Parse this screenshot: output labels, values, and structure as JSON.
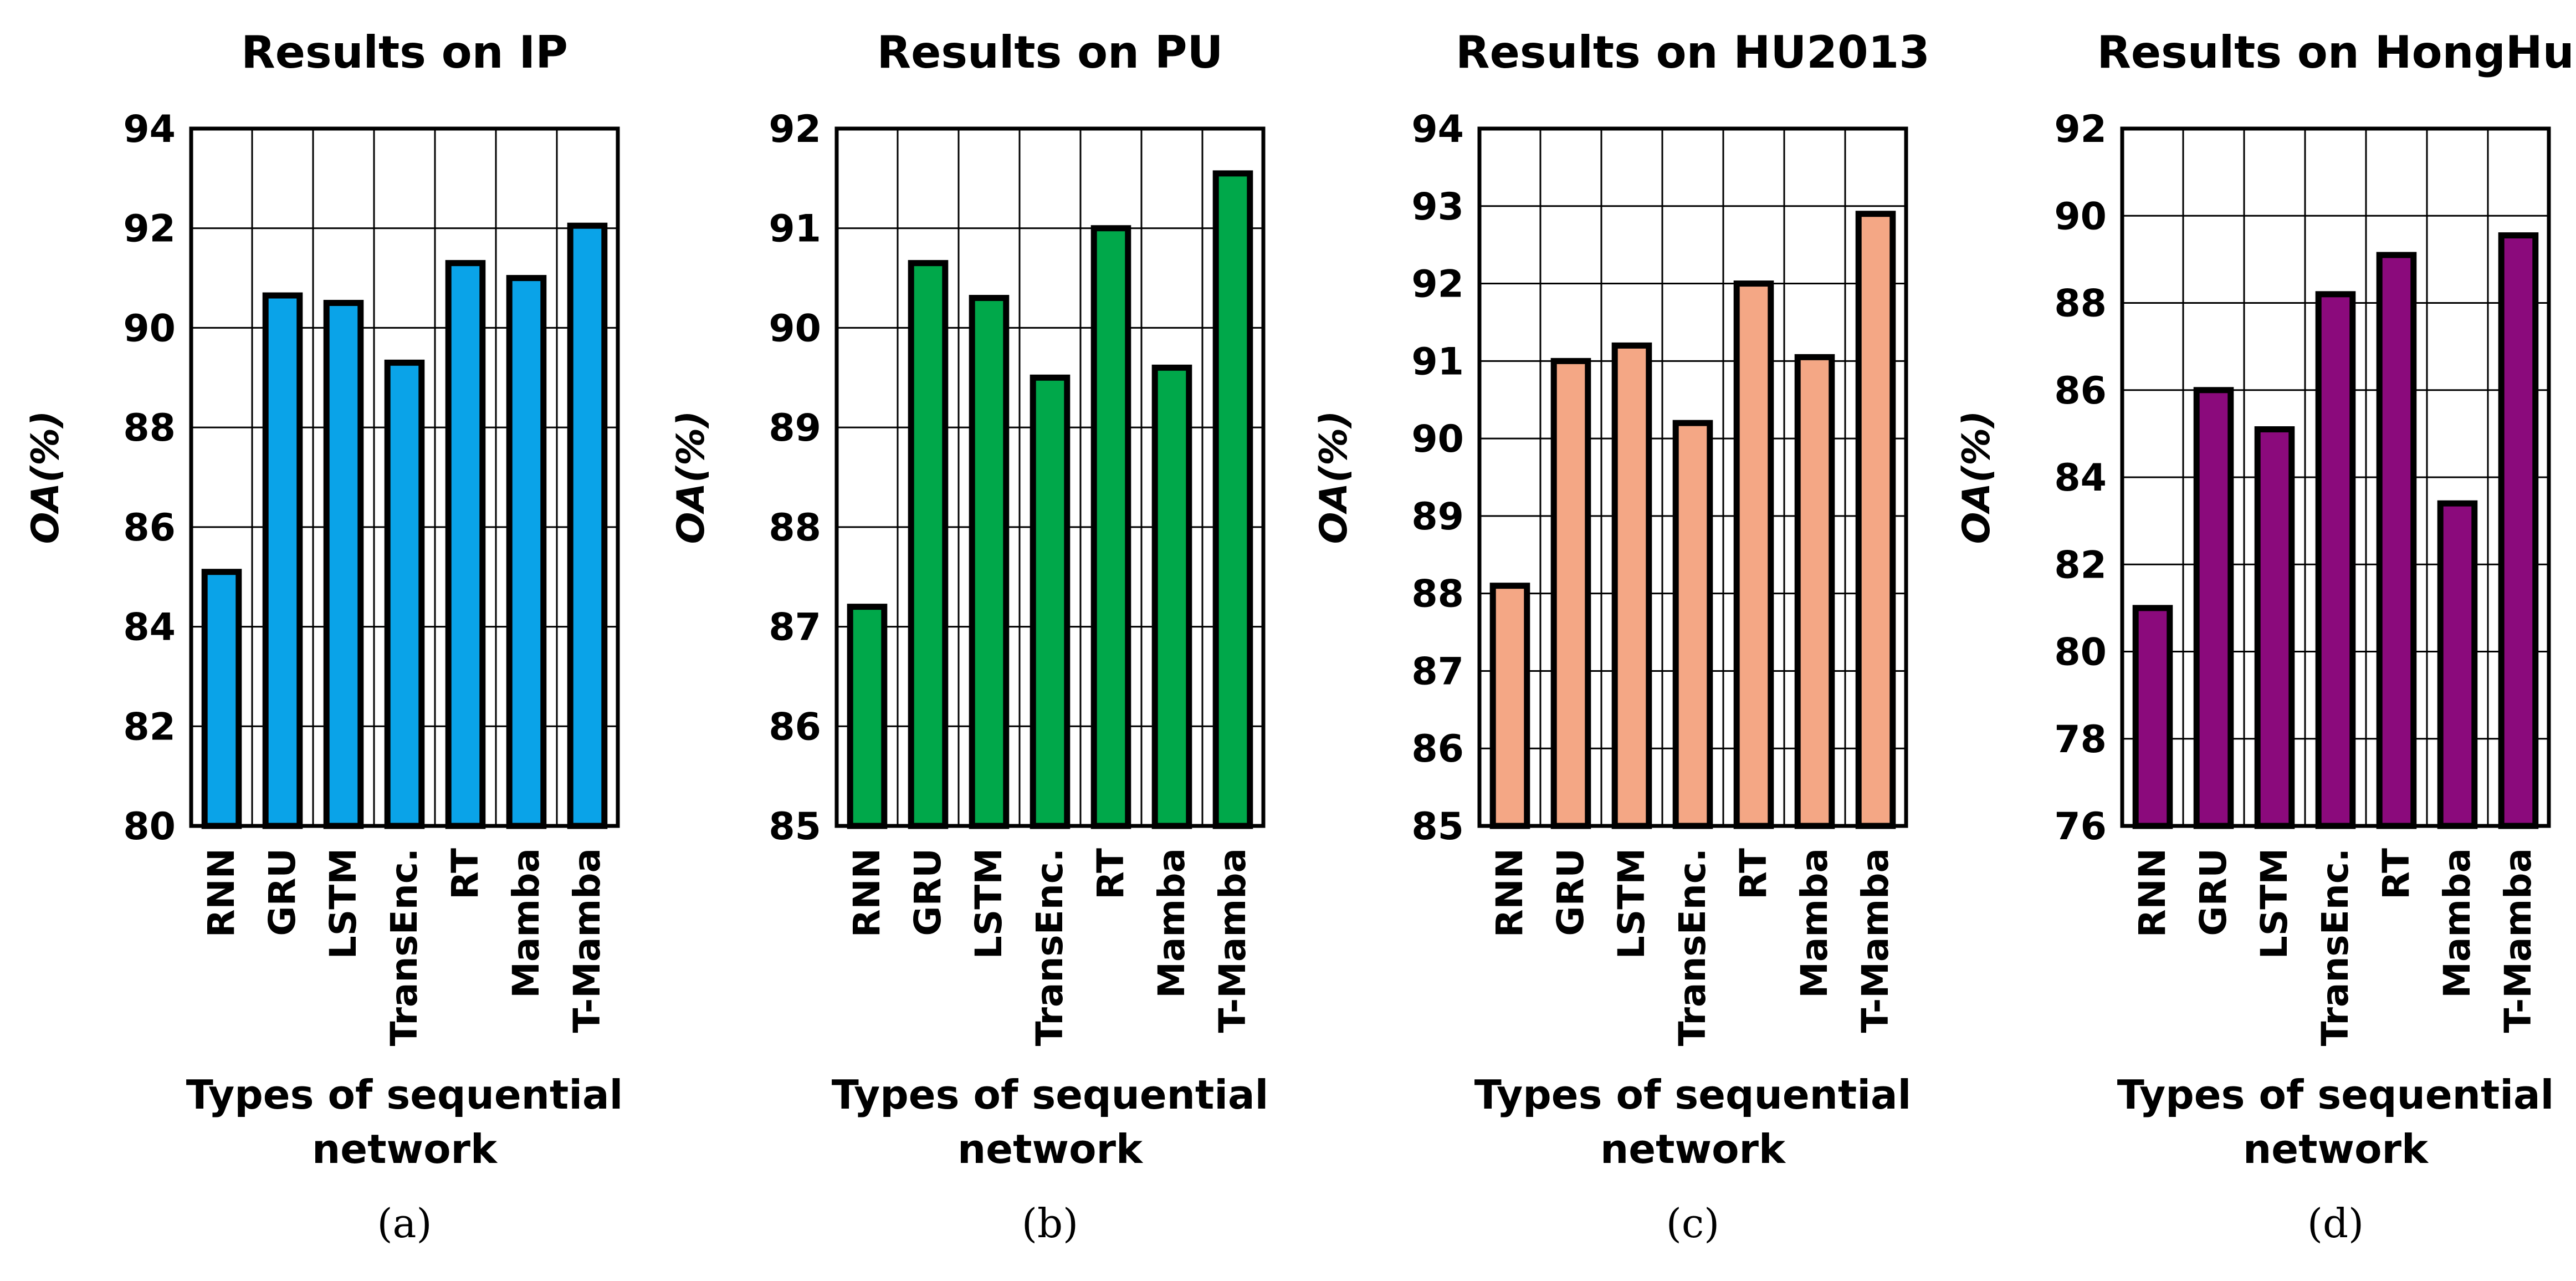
{
  "chart_data": [
    {
      "type": "bar",
      "title": "Results on IP",
      "xlabel": [
        "Types of sequential",
        "network"
      ],
      "ylabel": "OA(%)",
      "caption": "(a)",
      "categories": [
        "RNN",
        "GRU",
        "LSTM",
        "TransEnc.",
        "RT",
        "Mamba",
        "T-Mamba"
      ],
      "values": [
        85.1,
        90.65,
        90.5,
        89.3,
        91.3,
        91.0,
        92.05
      ],
      "ylim": [
        80,
        94
      ],
      "yticks": [
        80,
        82,
        84,
        86,
        88,
        90,
        92,
        94
      ],
      "grid": true,
      "color": "#0aa3e8"
    },
    {
      "type": "bar",
      "title": "Results on PU",
      "xlabel": [
        "Types of sequential",
        "network"
      ],
      "ylabel": "OA(%)",
      "caption": "(b)",
      "categories": [
        "RNN",
        "GRU",
        "LSTM",
        "TransEnc.",
        "RT",
        "Mamba",
        "T-Mamba"
      ],
      "values": [
        87.2,
        90.65,
        90.3,
        89.5,
        91.0,
        89.6,
        91.55
      ],
      "ylim": [
        85,
        92
      ],
      "yticks": [
        85,
        86,
        87,
        88,
        89,
        90,
        91,
        92
      ],
      "grid": true,
      "color": "#00a84a"
    },
    {
      "type": "bar",
      "title": "Results on HU2013",
      "xlabel": [
        "Types of sequential",
        "network"
      ],
      "ylabel": "OA(%)",
      "caption": "(c)",
      "categories": [
        "RNN",
        "GRU",
        "LSTM",
        "TransEnc.",
        "RT",
        "Mamba",
        "T-Mamba"
      ],
      "values": [
        88.1,
        91.0,
        91.2,
        90.2,
        92.0,
        91.05,
        92.9
      ],
      "ylim": [
        85,
        94
      ],
      "yticks": [
        85,
        86,
        87,
        88,
        89,
        90,
        91,
        92,
        93,
        94
      ],
      "grid": true,
      "color": "#f4a785"
    },
    {
      "type": "bar",
      "title": "Results on HongHu",
      "xlabel": [
        "Types of sequential",
        "network"
      ],
      "ylabel": "OA(%)",
      "caption": "(d)",
      "categories": [
        "RNN",
        "GRU",
        "LSTM",
        "TransEnc.",
        "RT",
        "Mamba",
        "T-Mamba"
      ],
      "values": [
        81.0,
        86.0,
        85.1,
        88.2,
        89.1,
        83.4,
        89.55
      ],
      "ylim": [
        76,
        92
      ],
      "yticks": [
        76,
        78,
        80,
        82,
        84,
        86,
        88,
        90,
        92
      ],
      "grid": true,
      "color": "#8b0a7c"
    }
  ]
}
